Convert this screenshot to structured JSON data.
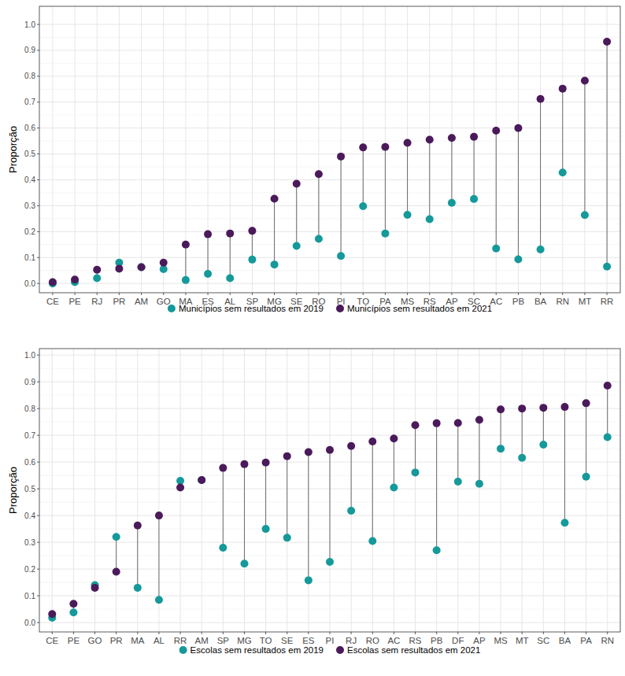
{
  "chart_data": [
    {
      "type": "dumbbell",
      "y_label": "Proporção",
      "grid": true,
      "legend": "bottom",
      "categories": [
        "CE",
        "PE",
        "RJ",
        "PR",
        "AM",
        "GO",
        "MA",
        "ES",
        "AL",
        "SP",
        "MG",
        "SE",
        "RO",
        "PI",
        "TO",
        "PA",
        "MS",
        "RS",
        "AP",
        "SC",
        "AC",
        "PB",
        "BA",
        "RN",
        "MT",
        "RR"
      ],
      "ylim": [
        -0.036,
        1.07
      ],
      "yticks": [
        {
          "value": 0,
          "label": "0.0"
        },
        {
          "value": 0.1,
          "label": "0.1"
        },
        {
          "value": 0.2,
          "label": "0.2"
        },
        {
          "value": 0.3,
          "label": "0.3"
        },
        {
          "value": 0.4,
          "label": "0.4"
        },
        {
          "value": 0.5,
          "label": "0.5"
        },
        {
          "value": 0.6,
          "label": "0.6"
        },
        {
          "value": 0.7,
          "label": "0.7"
        },
        {
          "value": 0.8,
          "label": "0.8"
        },
        {
          "value": 0.9,
          "label": "0.9"
        },
        {
          "value": 1,
          "label": "1.0"
        }
      ],
      "series": [
        {
          "name": "Municípios sem resultados em 2019",
          "color": "#15999a",
          "marker": "circle",
          "values": [
            0.0,
            0.005,
            0.02,
            0.08,
            0.063,
            0.055,
            0.013,
            0.037,
            0.02,
            0.092,
            0.073,
            0.145,
            0.172,
            0.106,
            0.298,
            0.193,
            0.265,
            0.248,
            0.311,
            0.326,
            0.135,
            0.093,
            0.131,
            0.428,
            0.264,
            0.065
          ]
        },
        {
          "name": "Municípios sem resultados em 2021",
          "color": "#4b1a5b",
          "marker": "circle",
          "values": [
            0.005,
            0.015,
            0.053,
            0.057,
            0.063,
            0.08,
            0.15,
            0.19,
            0.193,
            0.203,
            0.327,
            0.385,
            0.422,
            0.49,
            0.525,
            0.527,
            0.543,
            0.555,
            0.562,
            0.566,
            0.59,
            0.6,
            0.712,
            0.752,
            0.783,
            0.933
          ]
        }
      ]
    },
    {
      "type": "dumbbell",
      "y_label": "Proporção",
      "grid": true,
      "legend": "bottom",
      "categories": [
        "CE",
        "PE",
        "GO",
        "PR",
        "MA",
        "AL",
        "RR",
        "AM",
        "SP",
        "MG",
        "TO",
        "SE",
        "ES",
        "PI",
        "RJ",
        "RO",
        "AC",
        "RS",
        "PB",
        "DF",
        "AP",
        "MS",
        "MT",
        "SC",
        "BA",
        "PA",
        "RN"
      ],
      "ylim": [
        -0.035,
        1.024
      ],
      "yticks": [
        {
          "value": 0,
          "label": "0.0"
        },
        {
          "value": 0.1,
          "label": "0.1"
        },
        {
          "value": 0.2,
          "label": "0.2"
        },
        {
          "value": 0.3,
          "label": "0.3"
        },
        {
          "value": 0.4,
          "label": "0.4"
        },
        {
          "value": 0.5,
          "label": "0.5"
        },
        {
          "value": 0.6,
          "label": "0.6"
        },
        {
          "value": 0.7,
          "label": "0.7"
        },
        {
          "value": 0.8,
          "label": "0.8"
        },
        {
          "value": 0.9,
          "label": "0.9"
        },
        {
          "value": 1,
          "label": "1.0"
        }
      ],
      "series": [
        {
          "name": "Escolas sem resultados em 2019",
          "color": "#15999a",
          "marker": "circle",
          "values": [
            0.018,
            0.038,
            0.14,
            0.32,
            0.13,
            0.085,
            0.53,
            0.533,
            0.28,
            0.22,
            0.35,
            0.317,
            0.158,
            0.227,
            0.418,
            0.305,
            0.505,
            0.561,
            0.27,
            0.527,
            0.519,
            0.65,
            0.616,
            0.665,
            0.373,
            0.545,
            0.693
          ]
        },
        {
          "name": "Escolas sem resultados em 2021",
          "color": "#4b1a5b",
          "marker": "circle",
          "values": [
            0.032,
            0.07,
            0.13,
            0.19,
            0.363,
            0.4,
            0.505,
            0.533,
            0.578,
            0.592,
            0.598,
            0.622,
            0.637,
            0.645,
            0.66,
            0.677,
            0.688,
            0.738,
            0.745,
            0.746,
            0.758,
            0.797,
            0.8,
            0.803,
            0.806,
            0.82,
            0.886
          ]
        }
      ]
    }
  ]
}
